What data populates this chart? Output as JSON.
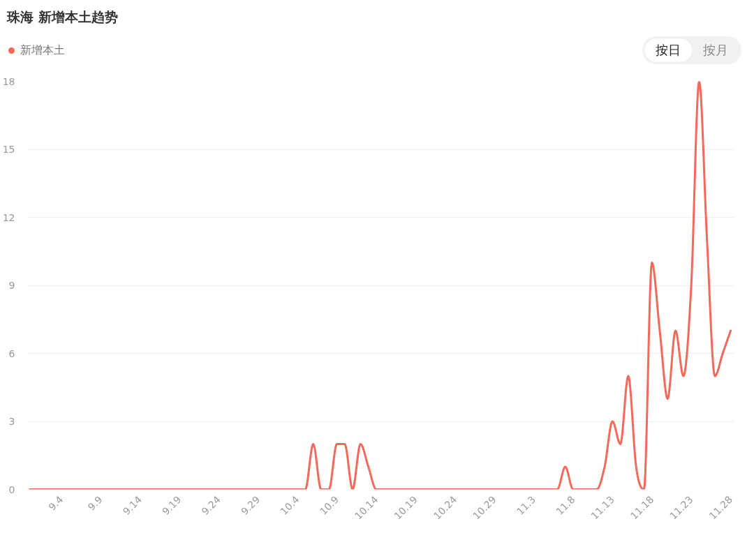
{
  "chart_data": {
    "type": "line",
    "title": "珠海 新增本土趋势",
    "categories": [
      null,
      null,
      null,
      null,
      "9.4",
      null,
      null,
      null,
      null,
      "9.9",
      null,
      null,
      null,
      null,
      "9.14",
      null,
      null,
      null,
      null,
      "9.19",
      null,
      null,
      null,
      null,
      "9.24",
      null,
      null,
      null,
      null,
      "9.29",
      null,
      null,
      null,
      null,
      "10.4",
      null,
      null,
      null,
      null,
      "10.9",
      null,
      null,
      null,
      null,
      "10.14",
      null,
      null,
      null,
      null,
      "10.19",
      null,
      null,
      null,
      null,
      "10.24",
      null,
      null,
      null,
      null,
      "10.29",
      null,
      null,
      null,
      null,
      "11.3",
      null,
      null,
      null,
      null,
      "11.8",
      null,
      null,
      null,
      null,
      "11.13",
      null,
      null,
      null,
      null,
      "11.18",
      null,
      null,
      null,
      null,
      "11.23",
      null,
      null,
      null,
      null,
      "11.28"
    ],
    "series": [
      {
        "name": "新增本土",
        "color": "#f5695a",
        "values": [
          0,
          0,
          0,
          0,
          0,
          0,
          0,
          0,
          0,
          0,
          0,
          0,
          0,
          0,
          0,
          0,
          0,
          0,
          0,
          0,
          0,
          0,
          0,
          0,
          0,
          0,
          0,
          0,
          0,
          0,
          0,
          0,
          0,
          0,
          0,
          0,
          2,
          0,
          0,
          2,
          2,
          0,
          2,
          1,
          0,
          0,
          0,
          0,
          0,
          0,
          0,
          0,
          0,
          0,
          0,
          0,
          0,
          0,
          0,
          0,
          0,
          0,
          0,
          0,
          0,
          0,
          0,
          0,
          1,
          0,
          0,
          0,
          0,
          1,
          3,
          2,
          5,
          1,
          0,
          10,
          7,
          4,
          7,
          5,
          9,
          18,
          11,
          5,
          6,
          7
        ]
      }
    ],
    "ylim": [
      0,
      18
    ],
    "yticks": [
      0,
      3,
      6,
      9,
      12,
      15,
      18
    ],
    "grid": "y",
    "legend": "top left",
    "annotations": [
      "按日",
      "按月"
    ]
  }
}
